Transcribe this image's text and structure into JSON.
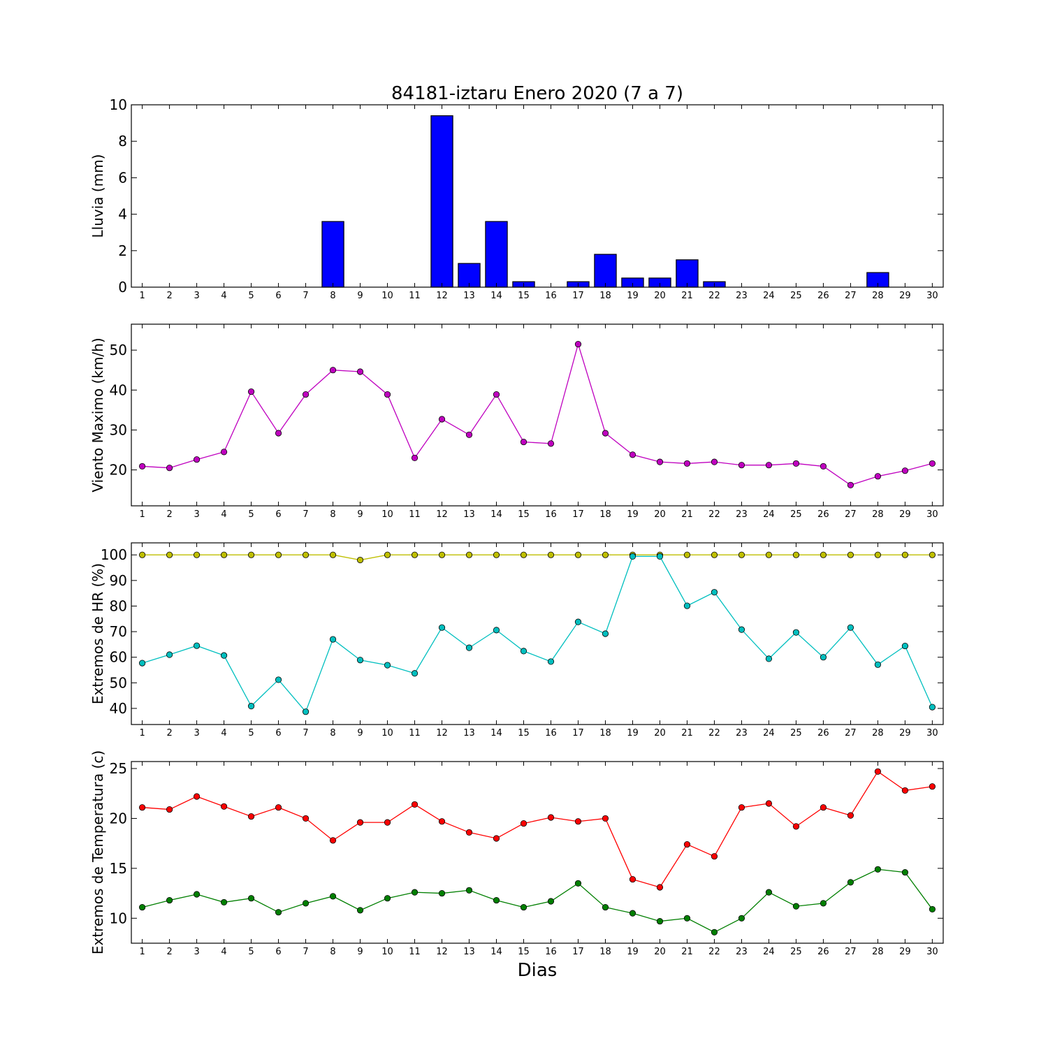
{
  "figure": {
    "title": "84181-iztaru Enero 2020  (7 a 7)",
    "xlabel": "Dias"
  },
  "chart_data": [
    {
      "type": "bar",
      "ylabel": "Lluvia (mm)",
      "categories": [
        1,
        2,
        3,
        4,
        5,
        6,
        7,
        8,
        9,
        10,
        11,
        12,
        13,
        14,
        15,
        16,
        17,
        18,
        19,
        20,
        21,
        22,
        23,
        24,
        25,
        26,
        27,
        28,
        29,
        30
      ],
      "values": [
        0,
        0,
        0,
        0,
        0,
        0,
        0,
        3.6,
        0,
        0,
        0,
        9.4,
        1.3,
        3.6,
        0.3,
        0,
        0.3,
        1.8,
        0.5,
        0.5,
        1.5,
        0.3,
        0,
        0,
        0,
        0,
        0,
        0.8,
        0,
        0
      ],
      "ylim": [
        0,
        10
      ],
      "yticks": [
        0,
        2,
        4,
        6,
        8,
        10
      ],
      "color": "#0000ff"
    },
    {
      "type": "line",
      "ylabel": "Viento Maximo (km/h)",
      "x": [
        1,
        2,
        3,
        4,
        5,
        6,
        7,
        8,
        9,
        10,
        11,
        12,
        13,
        14,
        15,
        16,
        17,
        18,
        19,
        20,
        21,
        22,
        23,
        24,
        25,
        26,
        27,
        28,
        29,
        30
      ],
      "series": [
        {
          "color": "#bf00bf",
          "values": [
            20.9,
            20.5,
            22.6,
            24.5,
            39.6,
            29.2,
            38.9,
            45.0,
            44.6,
            38.9,
            23.0,
            32.7,
            28.8,
            38.9,
            27.0,
            26.6,
            51.5,
            29.2,
            23.8,
            22.0,
            21.6,
            22.0,
            21.2,
            21.2,
            21.6,
            20.9,
            16.2,
            18.4,
            19.8,
            21.6
          ]
        }
      ],
      "ylim": [
        11,
        56.5
      ],
      "yticks": [
        20,
        30,
        40,
        50
      ]
    },
    {
      "type": "line",
      "ylabel": "Extremos de HR (%)",
      "x": [
        1,
        2,
        3,
        4,
        5,
        6,
        7,
        8,
        9,
        10,
        11,
        12,
        13,
        14,
        15,
        16,
        17,
        18,
        19,
        20,
        21,
        22,
        23,
        24,
        25,
        26,
        27,
        28,
        29,
        30
      ],
      "series": [
        {
          "color": "#bfbf00",
          "values": [
            100,
            100,
            100,
            100,
            100,
            100,
            100,
            100,
            98,
            100,
            100,
            100,
            100,
            100,
            100,
            100,
            100,
            100,
            100,
            100,
            100,
            100,
            100,
            100,
            100,
            100,
            100,
            100,
            100,
            100
          ]
        },
        {
          "color": "#00bfbf",
          "values": [
            57.7,
            61.0,
            64.5,
            60.7,
            40.9,
            51.2,
            38.7,
            67.0,
            58.9,
            56.9,
            53.7,
            71.6,
            63.7,
            70.6,
            62.4,
            58.3,
            73.8,
            69.2,
            99.4,
            99.4,
            80.1,
            85.4,
            70.8,
            59.4,
            69.7,
            60.0,
            71.6,
            57.1,
            64.4,
            40.5
          ]
        }
      ],
      "ylim": [
        33.7,
        104.7
      ],
      "yticks": [
        40,
        50,
        60,
        70,
        80,
        90,
        100
      ]
    },
    {
      "type": "line",
      "ylabel": "Extremos de Temperatura (c)",
      "x": [
        1,
        2,
        3,
        4,
        5,
        6,
        7,
        8,
        9,
        10,
        11,
        12,
        13,
        14,
        15,
        16,
        17,
        18,
        19,
        20,
        21,
        22,
        23,
        24,
        25,
        26,
        27,
        28,
        29,
        30
      ],
      "series": [
        {
          "color": "#ff0000",
          "values": [
            21.1,
            20.9,
            22.2,
            21.2,
            20.2,
            21.1,
            20.0,
            17.8,
            19.6,
            19.6,
            21.4,
            19.7,
            18.6,
            18.0,
            19.5,
            20.1,
            19.7,
            20.0,
            13.9,
            13.1,
            17.4,
            16.2,
            21.1,
            21.5,
            19.2,
            21.1,
            20.3,
            24.7,
            22.8,
            23.2
          ]
        },
        {
          "color": "#007f00",
          "values": [
            11.1,
            11.8,
            12.4,
            11.6,
            12.0,
            10.6,
            11.5,
            12.2,
            10.8,
            12.0,
            12.6,
            12.5,
            12.8,
            11.8,
            11.1,
            11.7,
            13.5,
            11.1,
            10.5,
            9.7,
            10.0,
            8.6,
            10.0,
            12.6,
            11.2,
            11.5,
            13.6,
            14.9,
            14.6,
            10.9
          ]
        }
      ],
      "ylim": [
        7.5,
        25.7
      ],
      "yticks": [
        10,
        15,
        20,
        25
      ]
    }
  ]
}
